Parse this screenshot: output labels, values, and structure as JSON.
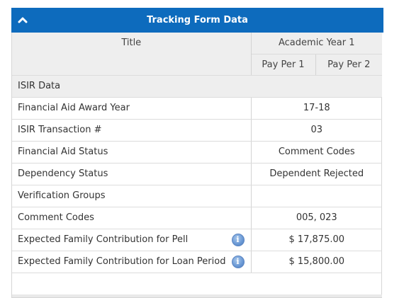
{
  "panel": {
    "title": "Tracking Form Data",
    "collapse_icon": "chevron-up-icon",
    "header_color": "#0d6bbd"
  },
  "table": {
    "title_header": "Title",
    "year_header": "Academic Year 1",
    "pay_periods": [
      "Pay Per 1",
      "Pay Per 2"
    ],
    "section": "ISIR Data",
    "rows": [
      {
        "label": "Financial Aid Award Year",
        "value": "17-18"
      },
      {
        "label": "ISIR Transaction #",
        "value": "03"
      },
      {
        "label": "Financial Aid Status",
        "value": "Comment Codes"
      },
      {
        "label": "Dependency Status",
        "value": "Dependent Rejected"
      },
      {
        "label": "Verification Groups",
        "value": ""
      },
      {
        "label": "Comment Codes",
        "value": "005, 023"
      },
      {
        "label": "Expected Family Contribution for Pell",
        "value": "$ 17,875.00",
        "info_icon": "info-icon",
        "info_glyph": "i"
      },
      {
        "label": "Expected Family Contribution for Loan Period",
        "value": "$ 15,800.00",
        "info_icon": "info-icon",
        "info_glyph": "i"
      }
    ]
  }
}
